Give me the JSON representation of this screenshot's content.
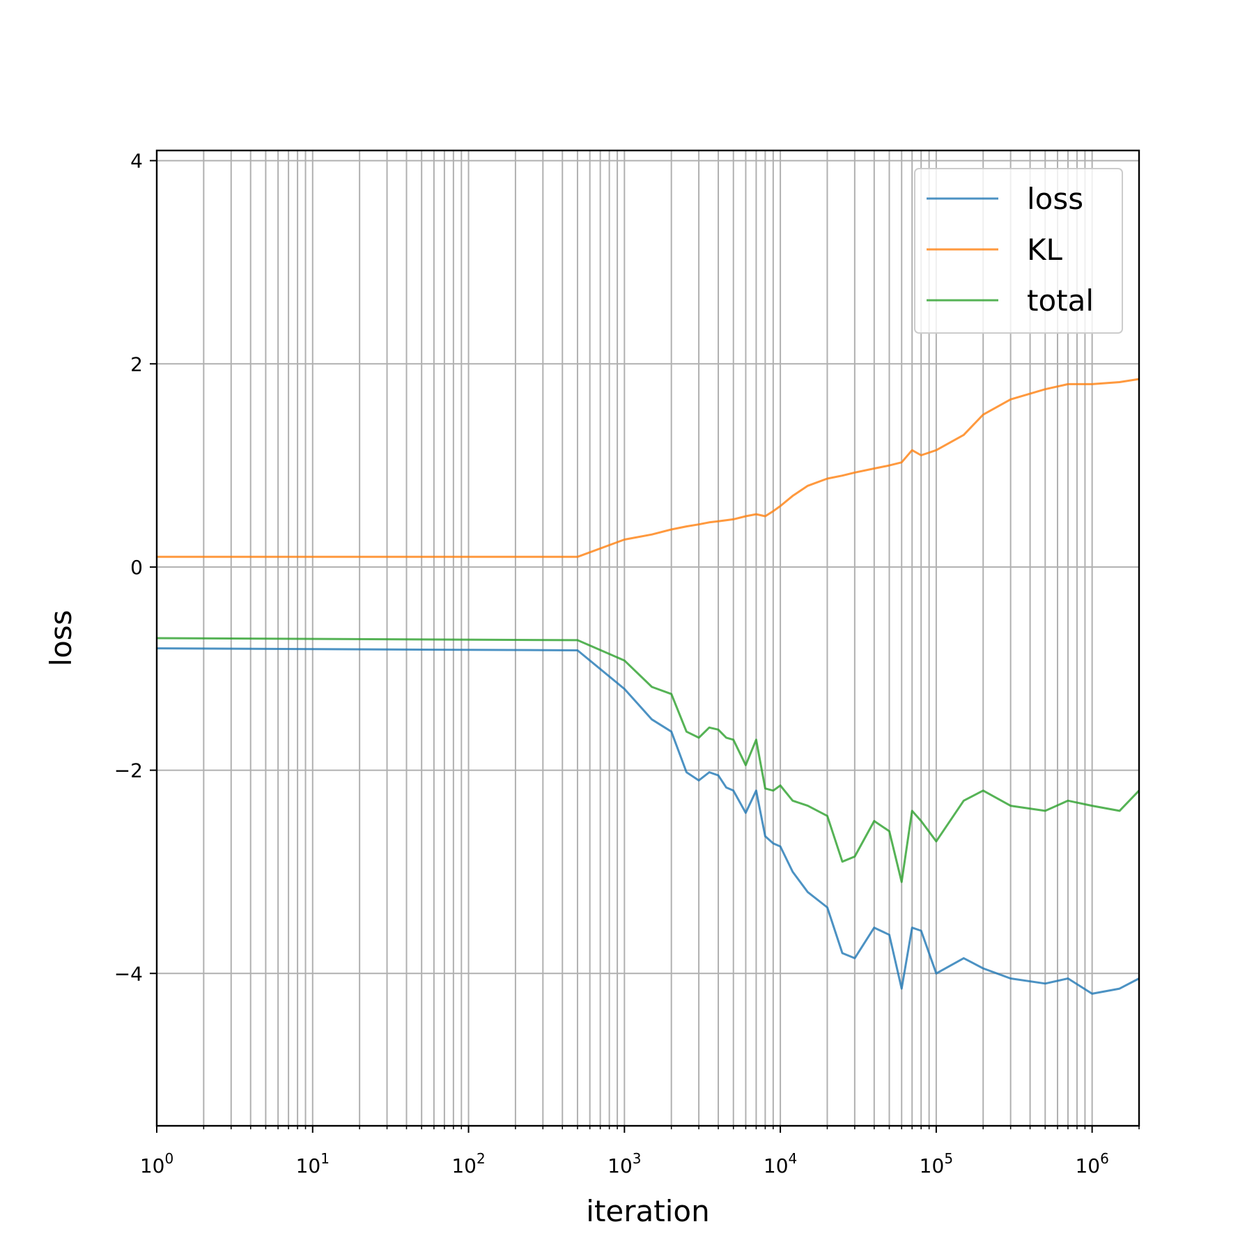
{
  "chart_data": {
    "type": "line",
    "xlabel": "iteration",
    "ylabel": "loss",
    "xscale": "log",
    "xlim": [
      1,
      2000000
    ],
    "ylim": [
      -5.5,
      4.1
    ],
    "grid": true,
    "legend_position": "top-right",
    "x_tick_labels": [
      {
        "base": "10",
        "exp": "0"
      },
      {
        "base": "10",
        "exp": "1"
      },
      {
        "base": "10",
        "exp": "2"
      },
      {
        "base": "10",
        "exp": "3"
      },
      {
        "base": "10",
        "exp": "4"
      },
      {
        "base": "10",
        "exp": "5"
      },
      {
        "base": "10",
        "exp": "6"
      }
    ],
    "y_ticks": [
      4,
      2,
      0,
      -2,
      -4
    ],
    "y_tick_labels": [
      "4",
      "2",
      "0",
      "−2",
      "−4"
    ],
    "series": [
      {
        "name": "loss",
        "color": "#1f77b4",
        "x": [
          1,
          500,
          1000,
          1500,
          2000,
          2500,
          3000,
          3500,
          4000,
          4500,
          5000,
          6000,
          7000,
          8000,
          9000,
          10000,
          12000,
          15000,
          20000,
          25000,
          30000,
          40000,
          50000,
          60000,
          70000,
          80000,
          100000,
          150000,
          200000,
          300000,
          500000,
          700000,
          1000000,
          1500000,
          2000000
        ],
        "y": [
          -0.8,
          -0.82,
          -1.2,
          -1.5,
          -1.62,
          -2.02,
          -2.1,
          -2.02,
          -2.05,
          -2.17,
          -2.2,
          -2.42,
          -2.2,
          -2.65,
          -2.72,
          -2.75,
          -3.0,
          -3.2,
          -3.35,
          -3.8,
          -3.85,
          -3.55,
          -3.62,
          -4.15,
          -3.55,
          -3.58,
          -4.0,
          -3.85,
          -3.95,
          -4.05,
          -4.1,
          -4.05,
          -4.2,
          -4.15,
          -4.05
        ]
      },
      {
        "name": "KL",
        "color": "#ff7f0e",
        "x": [
          1,
          500,
          1000,
          1500,
          2000,
          2500,
          3000,
          3500,
          4000,
          5000,
          6000,
          7000,
          8000,
          9000,
          10000,
          12000,
          15000,
          20000,
          25000,
          30000,
          40000,
          50000,
          60000,
          70000,
          80000,
          100000,
          150000,
          200000,
          300000,
          500000,
          700000,
          1000000,
          1500000,
          2000000
        ],
        "y": [
          0.1,
          0.1,
          0.27,
          0.32,
          0.37,
          0.4,
          0.42,
          0.44,
          0.45,
          0.47,
          0.5,
          0.52,
          0.5,
          0.55,
          0.6,
          0.7,
          0.8,
          0.87,
          0.9,
          0.93,
          0.97,
          1.0,
          1.03,
          1.15,
          1.1,
          1.15,
          1.3,
          1.5,
          1.65,
          1.75,
          1.8,
          1.8,
          1.82,
          1.85
        ]
      },
      {
        "name": "total",
        "color": "#2ca02c",
        "x": [
          1,
          500,
          1000,
          1500,
          2000,
          2500,
          3000,
          3500,
          4000,
          4500,
          5000,
          6000,
          7000,
          8000,
          9000,
          10000,
          12000,
          15000,
          20000,
          25000,
          30000,
          40000,
          50000,
          60000,
          70000,
          80000,
          100000,
          150000,
          200000,
          300000,
          500000,
          700000,
          1000000,
          1500000,
          2000000
        ],
        "y": [
          -0.7,
          -0.72,
          -0.92,
          -1.18,
          -1.25,
          -1.62,
          -1.68,
          -1.58,
          -1.6,
          -1.68,
          -1.7,
          -1.95,
          -1.7,
          -2.18,
          -2.2,
          -2.15,
          -2.3,
          -2.35,
          -2.45,
          -2.9,
          -2.85,
          -2.5,
          -2.6,
          -3.1,
          -2.4,
          -2.5,
          -2.7,
          -2.3,
          -2.2,
          -2.35,
          -2.4,
          -2.3,
          -2.35,
          -2.4,
          -2.2
        ]
      }
    ]
  }
}
